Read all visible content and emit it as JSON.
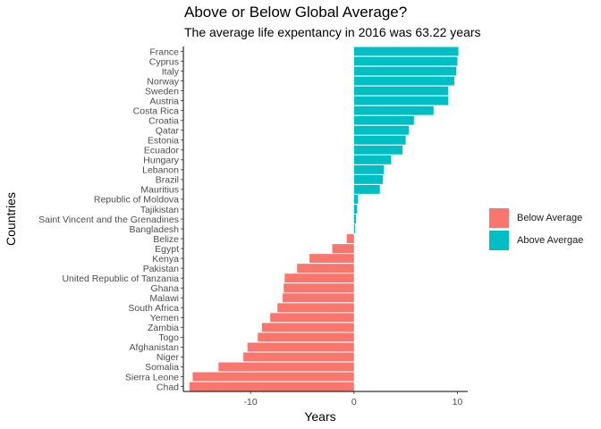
{
  "chart_data": {
    "type": "bar",
    "orientation": "horizontal",
    "title": "Above or Below Global Average?",
    "subtitle": "The average life expentancy in 2016 was 63.22 years",
    "xlabel": "Years",
    "ylabel": "Countries",
    "xlim": [
      -16.5,
      11
    ],
    "xticks": [
      -10,
      0,
      10
    ],
    "xtick_labels": [
      "-10",
      "0",
      "10"
    ],
    "grid": false,
    "legend_position": "right",
    "legend": [
      {
        "label": "Below Average",
        "color": "#F8766D"
      },
      {
        "label": "Above Avergae",
        "color": "#00BFC4"
      }
    ],
    "categories": [
      "France",
      "Cyprus",
      "Italy",
      "Norway",
      "Sweden",
      "Austria",
      "Costa Rica",
      "Croatia",
      "Qatar",
      "Estonia",
      "Ecuador",
      "Hungary",
      "Lebanon",
      "Brazil",
      "Mauritius",
      "Republic of Moldova",
      "Tajikistan",
      "Saint Vincent and the Grenadines",
      "Bangladesh",
      "Belize",
      "Egypt",
      "Kenya",
      "Pakistan",
      "United Republic of Tanzania",
      "Ghana",
      "Malawi",
      "South Africa",
      "Yemen",
      "Zambia",
      "Togo",
      "Afghanistan",
      "Niger",
      "Somalia",
      "Sierra Leone",
      "Chad"
    ],
    "values": [
      10.1,
      10.0,
      9.9,
      9.7,
      9.1,
      9.1,
      7.7,
      5.8,
      5.3,
      5.0,
      4.7,
      3.6,
      2.9,
      2.8,
      2.5,
      0.4,
      0.3,
      0.2,
      0.1,
      -0.7,
      -2.1,
      -4.3,
      -5.5,
      -6.7,
      -6.8,
      -6.9,
      -7.4,
      -8.1,
      -8.9,
      -9.3,
      -10.3,
      -10.7,
      -13.1,
      -15.6,
      -15.9
    ]
  }
}
